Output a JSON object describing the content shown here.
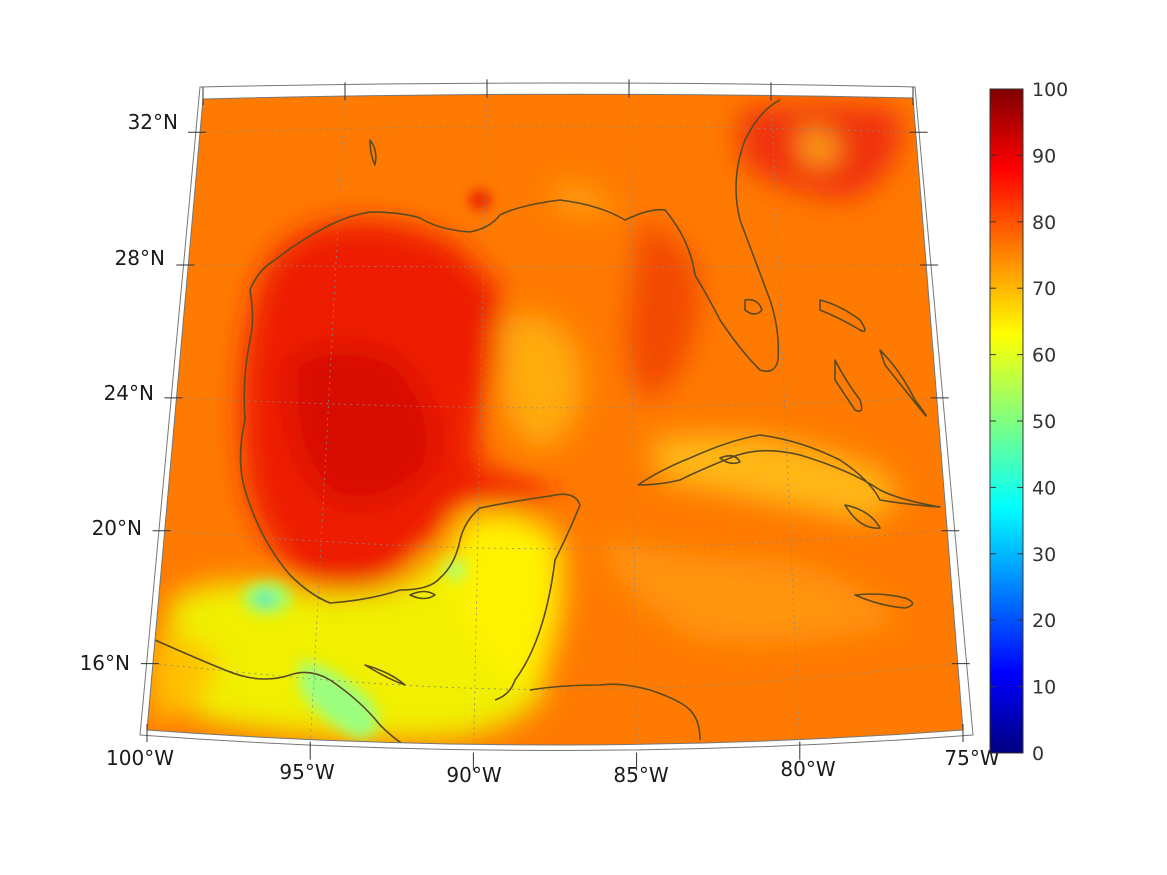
{
  "map": {
    "region": "Gulf of Mexico and Caribbean",
    "projection": "conic",
    "lon_range": [
      -100,
      -75
    ],
    "lat_range": [
      14,
      33
    ],
    "coastline_color": "#5a4a22",
    "gridline_color": "#888888",
    "lat_ticks": [
      {
        "lat": 32,
        "label": "32°N"
      },
      {
        "lat": 28,
        "label": "28°N"
      },
      {
        "lat": 24,
        "label": "24°N"
      },
      {
        "lat": 20,
        "label": "20°N"
      },
      {
        "lat": 16,
        "label": "16°N"
      }
    ],
    "lon_ticks": [
      {
        "lon": -100,
        "label": "100°W"
      },
      {
        "lon": -95,
        "label": "95°W"
      },
      {
        "lon": -90,
        "label": "90°W"
      },
      {
        "lon": -85,
        "label": "85°W"
      },
      {
        "lon": -80,
        "label": "80°W"
      },
      {
        "lon": -75,
        "label": "75°W"
      }
    ]
  },
  "colorbar": {
    "colormap": "jet",
    "min": 0,
    "max": 100,
    "ticks": [
      "100",
      "90",
      "80",
      "70",
      "60",
      "50",
      "40",
      "30",
      "20",
      "10",
      "0"
    ],
    "colors": [
      "#800000",
      "#ff0000",
      "#ff8000",
      "#ffff00",
      "#80ff80",
      "#00ffff",
      "#0080ff",
      "#0000ff",
      "#000080"
    ]
  }
}
